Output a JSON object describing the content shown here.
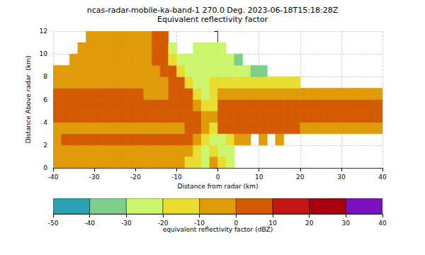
{
  "chart_data": {
    "type": "heatmap",
    "title": "ncas-radar-mobile-ka-band-1 270.0 Deg. 2023-06-18T15:18:28Z",
    "subtitle": "Equivalent reflectivity factor",
    "x_label": "Distance from radar (km)",
    "y_label": "Distance Above radar  (km)",
    "xlim": [
      -40,
      40
    ],
    "xticks": [
      -40,
      -30,
      -20,
      -10,
      0,
      10,
      20,
      30,
      40
    ],
    "ylim": [
      0,
      12
    ],
    "yticks": [
      0,
      2,
      4,
      6,
      8,
      10,
      12
    ],
    "grid": true,
    "x_bins": [
      -40,
      -38,
      -36,
      -34,
      -32,
      -30,
      -28,
      -26,
      -24,
      -22,
      -20,
      -18,
      -16,
      -14,
      -12,
      -10,
      -8,
      -6,
      -4,
      -2,
      0,
      2,
      4,
      6,
      8,
      10,
      12,
      14,
      16,
      18,
      20,
      22,
      24,
      26,
      28,
      30,
      32,
      34,
      36,
      38,
      40
    ],
    "y_bins": [
      0,
      1,
      2,
      3,
      4,
      5,
      6,
      7,
      8,
      9,
      10,
      11,
      12
    ],
    "values": [
      [
        -5,
        -5,
        -5,
        -5,
        -5,
        -5,
        -5,
        -5,
        -5,
        -5,
        -5,
        -5,
        -5,
        -5,
        -5,
        -5,
        -15,
        -15,
        -25,
        -5,
        -15,
        -25,
        null,
        null,
        null,
        null,
        null,
        null,
        null,
        null,
        null,
        null,
        null,
        null,
        null,
        null,
        null,
        null,
        null,
        null
      ],
      [
        -5,
        -5,
        -5,
        -5,
        -5,
        -5,
        -5,
        -5,
        -5,
        -5,
        -5,
        -5,
        -5,
        -5,
        -5,
        -5,
        -5,
        -15,
        -25,
        -15,
        -25,
        -25,
        null,
        null,
        null,
        null,
        null,
        null,
        null,
        null,
        null,
        null,
        null,
        null,
        null,
        null,
        null,
        null,
        null,
        null
      ],
      [
        -5,
        5,
        5,
        5,
        5,
        5,
        5,
        5,
        5,
        5,
        5,
        5,
        5,
        5,
        5,
        5,
        5,
        -5,
        -15,
        -25,
        -25,
        -15,
        -5,
        -5,
        null,
        -5,
        null,
        -5,
        null,
        null,
        null,
        null,
        null,
        null,
        null,
        null,
        null,
        null,
        null,
        null
      ],
      [
        -5,
        -5,
        -5,
        -5,
        -5,
        -5,
        -5,
        -5,
        -5,
        -5,
        -5,
        -5,
        -5,
        -5,
        -5,
        -5,
        5,
        5,
        -5,
        -15,
        5,
        5,
        5,
        5,
        5,
        5,
        5,
        5,
        5,
        5,
        -5,
        -5,
        -5,
        -5,
        -5,
        -5,
        -5,
        -5,
        -5,
        -5
      ],
      [
        5,
        5,
        5,
        5,
        5,
        5,
        5,
        5,
        5,
        5,
        5,
        5,
        5,
        5,
        5,
        5,
        5,
        5,
        -5,
        -5,
        5,
        5,
        5,
        5,
        5,
        5,
        5,
        5,
        5,
        5,
        5,
        5,
        5,
        5,
        5,
        5,
        5,
        5,
        5,
        5
      ],
      [
        5,
        5,
        5,
        5,
        5,
        5,
        5,
        5,
        5,
        5,
        5,
        5,
        5,
        5,
        5,
        5,
        5,
        -5,
        -15,
        -15,
        5,
        5,
        5,
        5,
        5,
        5,
        5,
        5,
        5,
        5,
        5,
        5,
        5,
        5,
        5,
        5,
        5,
        5,
        5,
        5
      ],
      [
        5,
        5,
        5,
        5,
        5,
        5,
        5,
        5,
        5,
        5,
        5,
        -5,
        -5,
        -5,
        5,
        5,
        5,
        -15,
        -25,
        -15,
        -5,
        -5,
        -5,
        -5,
        -5,
        -5,
        -5,
        -5,
        -5,
        -5,
        -5,
        -5,
        -5,
        -5,
        -5,
        -5,
        -5,
        -5,
        -5,
        -5
      ],
      [
        -5,
        -5,
        -5,
        -5,
        -5,
        -5,
        -5,
        -5,
        -5,
        -5,
        -5,
        -5,
        -5,
        -5,
        5,
        5,
        -15,
        -25,
        -25,
        -15,
        -15,
        -15,
        -15,
        -15,
        -15,
        -15,
        -15,
        -15,
        -15,
        -15,
        null,
        null,
        null,
        null,
        null,
        null,
        null,
        null,
        null,
        null
      ],
      [
        -5,
        -5,
        -5,
        -5,
        -5,
        -5,
        -5,
        -5,
        -5,
        -5,
        -5,
        -5,
        -5,
        5,
        5,
        -15,
        -25,
        -25,
        -25,
        -25,
        -25,
        -25,
        -25,
        -25,
        -35,
        -35,
        null,
        null,
        null,
        null,
        null,
        null,
        null,
        null,
        null,
        null,
        null,
        null,
        null,
        null
      ],
      [
        null,
        null,
        -5,
        -5,
        -5,
        -5,
        -5,
        -5,
        -5,
        -5,
        -5,
        -5,
        5,
        5,
        -15,
        -25,
        -25,
        -25,
        -25,
        -25,
        -25,
        -25,
        -35,
        null,
        null,
        null,
        null,
        null,
        null,
        null,
        null,
        null,
        null,
        null,
        null,
        null,
        null,
        null,
        null,
        null
      ],
      [
        null,
        null,
        null,
        -5,
        -5,
        -5,
        -5,
        -5,
        -5,
        -5,
        -5,
        -5,
        5,
        5,
        -25,
        null,
        null,
        -25,
        -25,
        -25,
        -25,
        null,
        null,
        null,
        null,
        null,
        null,
        null,
        null,
        null,
        null,
        null,
        null,
        null,
        null,
        null,
        null,
        null,
        null,
        null
      ],
      [
        null,
        null,
        null,
        null,
        -5,
        -5,
        -5,
        -5,
        -5,
        -5,
        -5,
        -5,
        5,
        5,
        null,
        null,
        null,
        null,
        null,
        null,
        null,
        null,
        null,
        null,
        null,
        null,
        null,
        null,
        null,
        null,
        null,
        null,
        null,
        null,
        null,
        null,
        null,
        null,
        null,
        null
      ]
    ],
    "colorbar": {
      "label": "equivalent reflectivity factor (dBZ)",
      "range": [
        -50,
        40
      ],
      "ticks": [
        -50,
        -40,
        -30,
        -20,
        -10,
        0,
        10,
        20,
        30,
        40
      ],
      "colors": [
        "#2aa0b0",
        "#7fcf8c",
        "#ccf76d",
        "#e9dd30",
        "#df9b08",
        "#d45a00",
        "#c51414",
        "#a8000e",
        "#7a10c0"
      ]
    }
  }
}
